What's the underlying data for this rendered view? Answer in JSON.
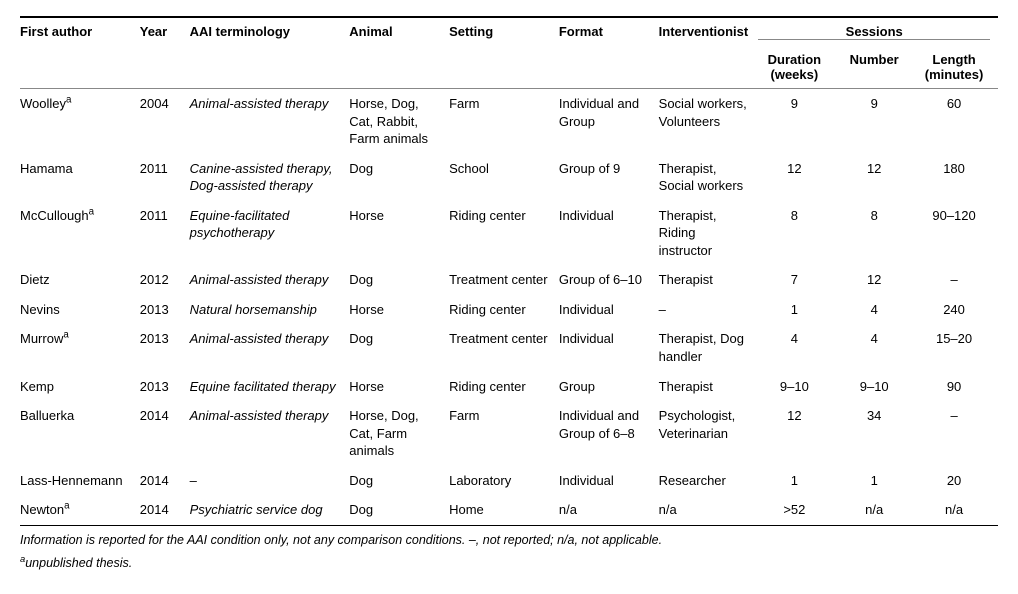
{
  "headers": {
    "first_author": "First author",
    "year": "Year",
    "aai": "AAI terminology",
    "animal": "Animal",
    "setting": "Setting",
    "format": "Format",
    "interventionist": "Interventionist",
    "sessions": "Sessions",
    "duration": "Duration (weeks)",
    "number": "Number",
    "length": "Length (minutes)"
  },
  "rows": [
    {
      "author": "Woolley",
      "sup": "a",
      "year": "2004",
      "aai": "Animal-assisted therapy",
      "animal": "Horse, Dog, Cat, Rabbit, Farm animals",
      "setting": "Farm",
      "format": "Individual and Group",
      "inter": "Social workers, Volunteers",
      "dur": "9",
      "num": "9",
      "len": "60"
    },
    {
      "author": "Hamama",
      "sup": "",
      "year": "2011",
      "aai": "Canine-assisted therapy, Dog-assisted therapy",
      "animal": "Dog",
      "setting": "School",
      "format": "Group of 9",
      "inter": "Therapist, Social workers",
      "dur": "12",
      "num": "12",
      "len": "180"
    },
    {
      "author": "McCullough",
      "sup": "a",
      "year": "2011",
      "aai": "Equine-facilitated psychotherapy",
      "animal": "Horse",
      "setting": "Riding center",
      "format": "Individual",
      "inter": "Therapist, Riding instructor",
      "dur": "8",
      "num": "8",
      "len": "90–120"
    },
    {
      "author": "Dietz",
      "sup": "",
      "year": "2012",
      "aai": "Animal-assisted therapy",
      "animal": "Dog",
      "setting": "Treatment center",
      "format": "Group of 6–10",
      "inter": "Therapist",
      "dur": "7",
      "num": "12",
      "len": "–"
    },
    {
      "author": "Nevins",
      "sup": "",
      "year": "2013",
      "aai": "Natural horsemanship",
      "animal": "Horse",
      "setting": "Riding center",
      "format": "Individual",
      "inter": "–",
      "dur": "1",
      "num": "4",
      "len": "240"
    },
    {
      "author": "Murrow",
      "sup": "a",
      "year": "2013",
      "aai": "Animal-assisted therapy",
      "animal": "Dog",
      "setting": "Treatment center",
      "format": "Individual",
      "inter": "Therapist, Dog handler",
      "dur": "4",
      "num": "4",
      "len": "15–20"
    },
    {
      "author": "Kemp",
      "sup": "",
      "year": "2013",
      "aai": "Equine facilitated therapy",
      "animal": "Horse",
      "setting": "Riding center",
      "format": "Group",
      "inter": "Therapist",
      "dur": "9–10",
      "num": "9–10",
      "len": "90"
    },
    {
      "author": "Balluerka",
      "sup": "",
      "year": "2014",
      "aai": "Animal-assisted therapy",
      "animal": "Horse, Dog, Cat, Farm animals",
      "setting": "Farm",
      "format": "Individual and Group of 6–8",
      "inter": "Psychologist, Veterinarian",
      "dur": "12",
      "num": "34",
      "len": "–"
    },
    {
      "author": "Lass-Hennemann",
      "sup": "",
      "year": "2014",
      "aai": "–",
      "animal": "Dog",
      "setting": "Laboratory",
      "format": "Individual",
      "inter": "Researcher",
      "dur": "1",
      "num": "1",
      "len": "20"
    },
    {
      "author": "Newton",
      "sup": "a",
      "year": "2014",
      "aai": "Psychiatric service dog",
      "animal": "Dog",
      "setting": "Home",
      "format": "n/a",
      "inter": "n/a",
      "dur": ">52",
      "num": "n/a",
      "len": "n/a"
    }
  ],
  "footnotes": {
    "line1": "Information is reported for the AAI condition only, not any comparison conditions. –, not reported; n/a, not applicable.",
    "line2_sup": "a",
    "line2": "unpublished thesis."
  },
  "style": {
    "font_family": "Arial, Helvetica, sans-serif",
    "font_size_pt": 13,
    "footnote_font_size_pt": 12.5,
    "text_color": "#000000",
    "background_color": "#ffffff",
    "top_rule_color": "#000000",
    "mid_rule_color": "#888888",
    "bottom_rule_color": "#000000",
    "italic_columns": [
      "aai"
    ],
    "centered_columns": [
      "dur",
      "num",
      "len"
    ],
    "column_widths_pct": {
      "author": 12,
      "year": 5,
      "aai": 16,
      "animal": 10,
      "setting": 11,
      "format": 10,
      "inter": 10,
      "dur": 8,
      "num": 8,
      "len": 8
    }
  }
}
